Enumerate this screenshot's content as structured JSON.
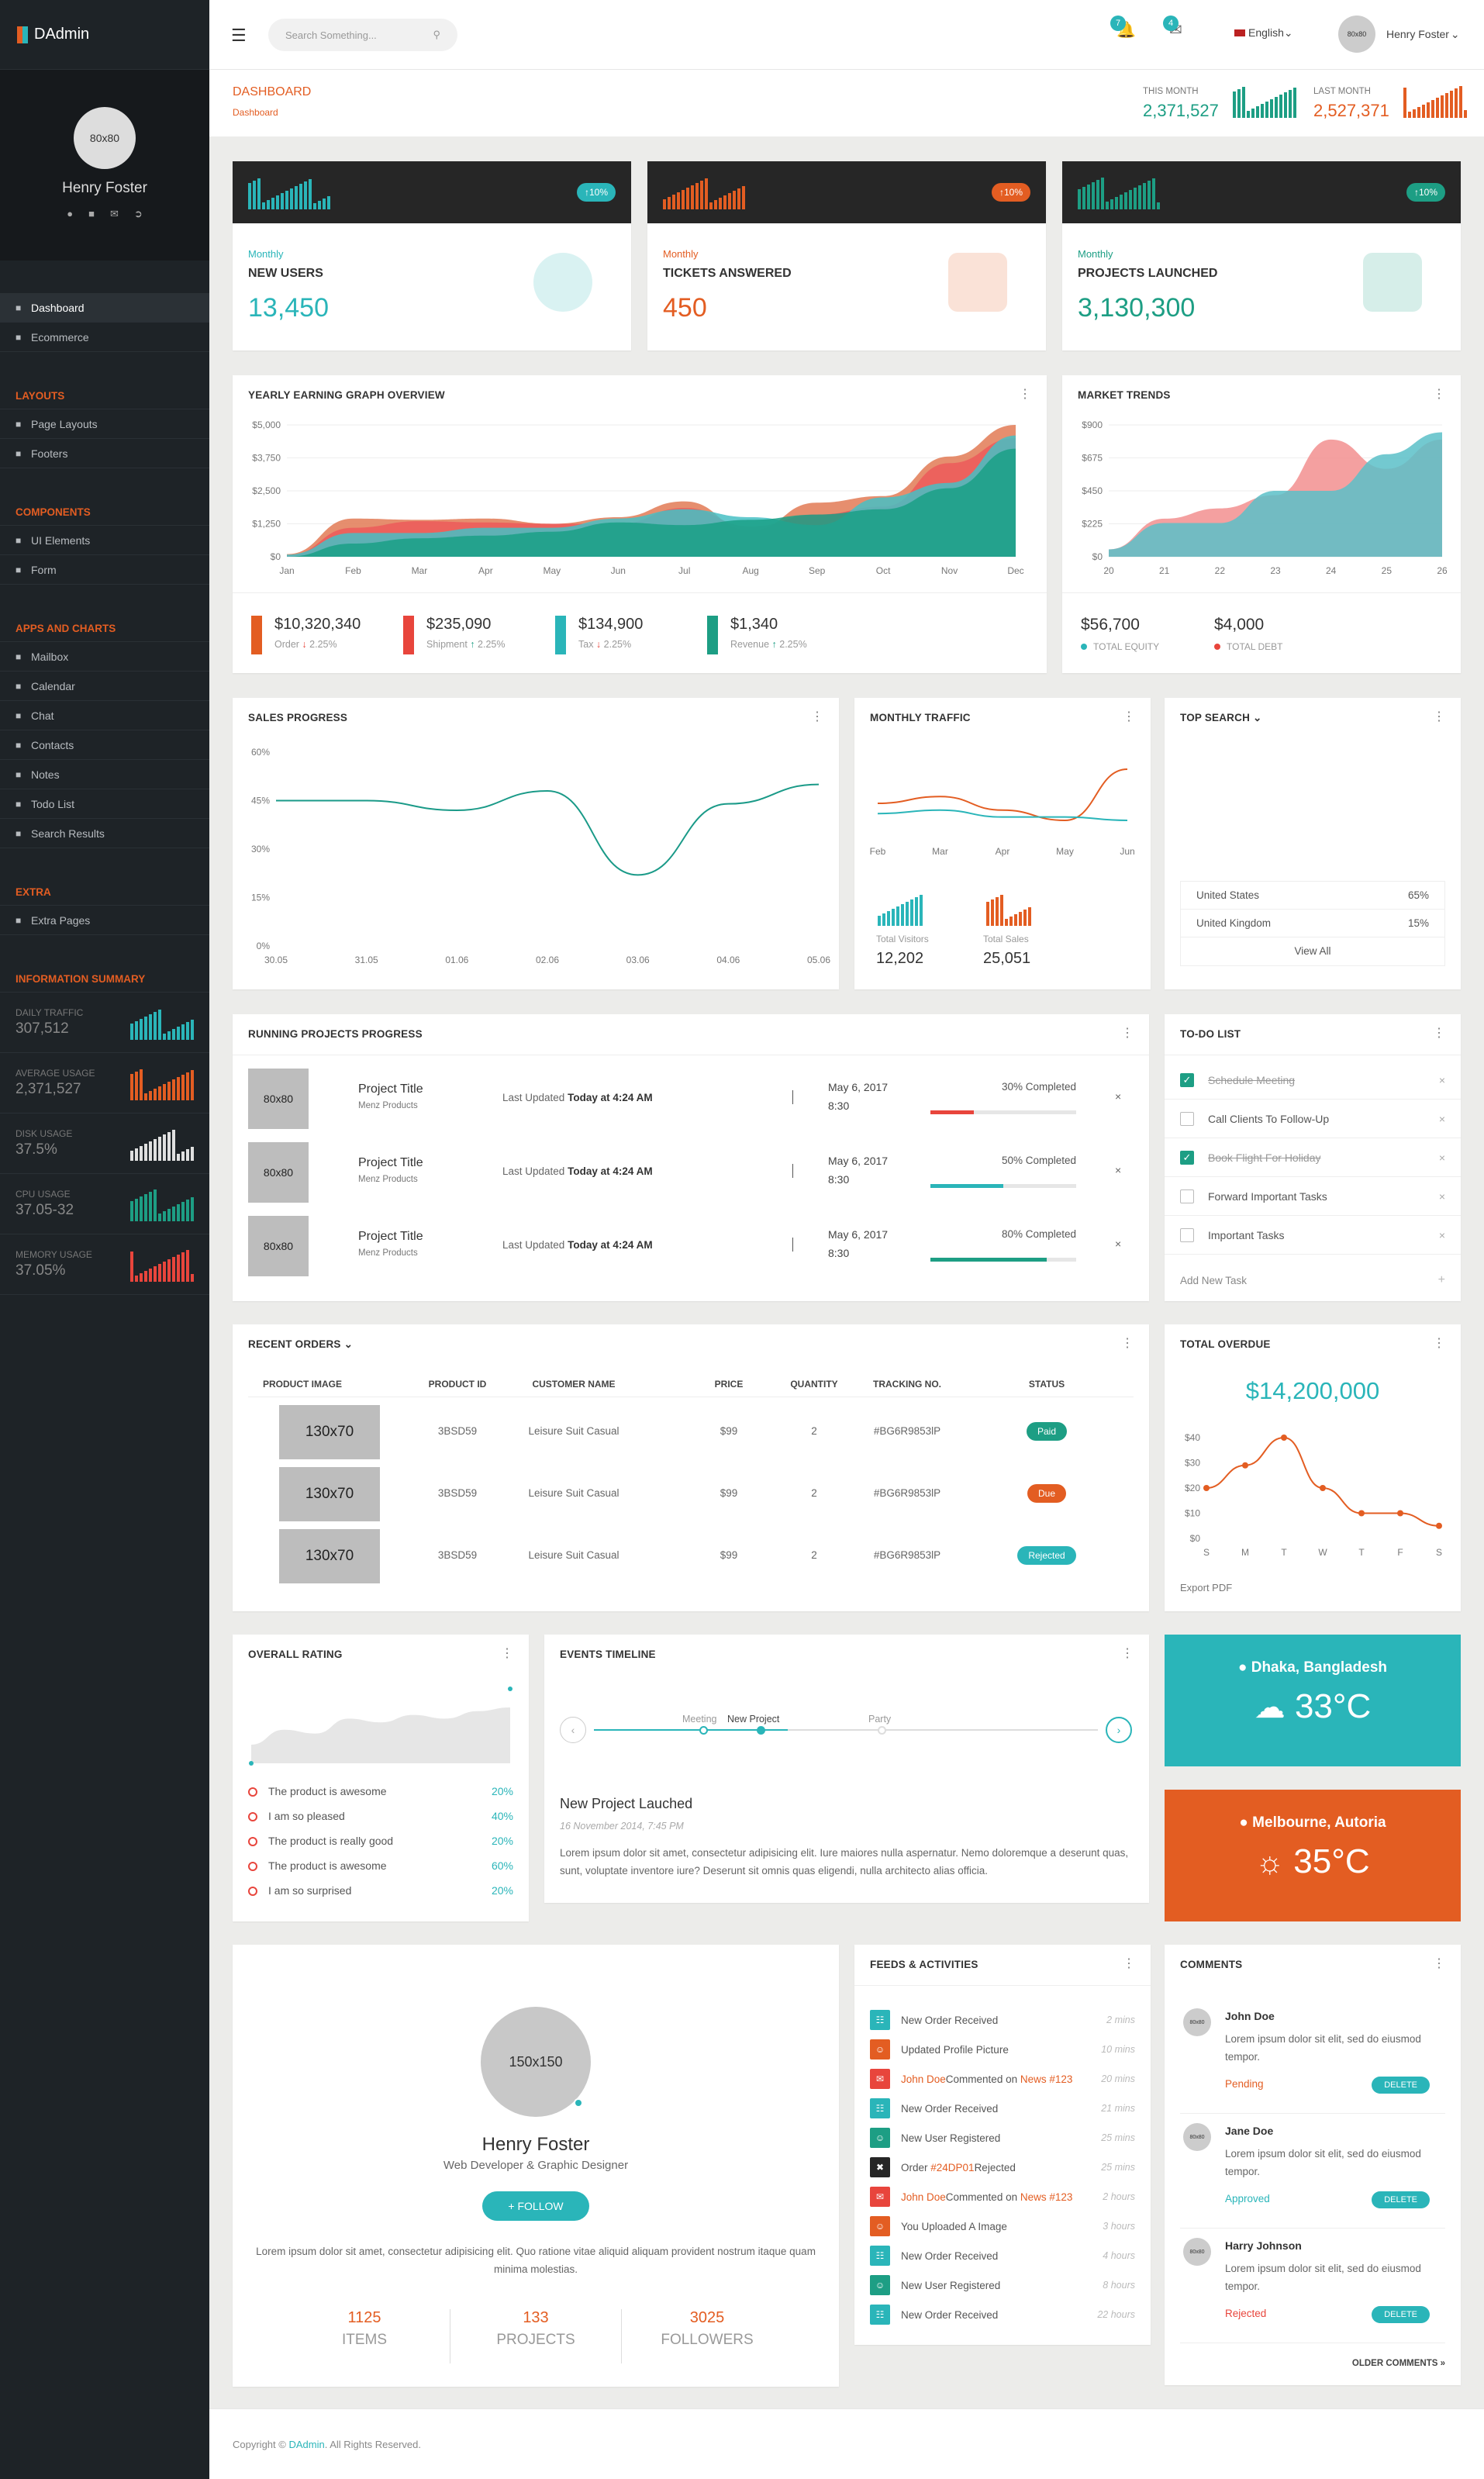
{
  "app": {
    "name": "DAdmin"
  },
  "sidebar": {
    "avatar": "80x80",
    "user_name": "Henry Foster",
    "items_main": [
      {
        "label": "Dashboard",
        "icon": "home-icon"
      },
      {
        "label": "Ecommerce",
        "icon": "cart-icon"
      }
    ],
    "layouts_head": "LAYOUTS",
    "items_layouts": [
      {
        "label": "Page Layouts"
      },
      {
        "label": "Footers"
      }
    ],
    "components_head": "COMPONENTS",
    "items_components": [
      {
        "label": "UI Elements"
      },
      {
        "label": "Form"
      }
    ],
    "apps_head": "APPS AND CHARTS",
    "items_apps": [
      {
        "label": "Mailbox"
      },
      {
        "label": "Calendar"
      },
      {
        "label": "Chat"
      },
      {
        "label": "Contacts"
      },
      {
        "label": "Notes"
      },
      {
        "label": "Todo List"
      },
      {
        "label": "Search Results"
      }
    ],
    "extra_head": "EXTRA",
    "items_extra": [
      {
        "label": "Extra Pages"
      }
    ],
    "info_head": "INFORMATION SUMMARY",
    "info": [
      {
        "label": "DAILY TRAFFIC",
        "value": "307,512",
        "color": "#2ab5b9"
      },
      {
        "label": "AVERAGE USAGE",
        "value": "2,371,527",
        "color": "#e35d22"
      },
      {
        "label": "DISK USAGE",
        "value": "37.5%",
        "color": "#e0e0e0"
      },
      {
        "label": "CPU USAGE",
        "value": "37.05-32",
        "color": "#1d9e84"
      },
      {
        "label": "MEMORY USAGE",
        "value": "37.05%",
        "color": "#e8453c"
      }
    ]
  },
  "topbar": {
    "search_placeholder": "Search Something...",
    "notif_count": "7",
    "mail_count": "4",
    "language": "English",
    "user": "Henry Foster",
    "avatar": "80x80"
  },
  "header": {
    "title": "DASHBOARD",
    "breadcrumb": "Dashboard",
    "this_month_label": "THIS MONTH",
    "this_month": "2,371,527",
    "last_month_label": "LAST MONTH",
    "last_month": "2,527,371"
  },
  "stats": [
    {
      "sub": "Monthly",
      "title": "NEW USERS",
      "value": "13,450",
      "pill": "10%",
      "color": "#2ab5b9"
    },
    {
      "sub": "Monthly",
      "title": "TICKETS ANSWERED",
      "value": "450",
      "pill": "10%",
      "color": "#e35d22"
    },
    {
      "sub": "Monthly",
      "title": "PROJECTS LAUNCHED",
      "value": "3,130,300",
      "pill": "10%",
      "color": "#1d9e84"
    }
  ],
  "yearly": {
    "title": "YEARLY EARNING GRAPH OVERVIEW",
    "summary": [
      {
        "value": "$10,320,340",
        "label": "Order",
        "change": "2.25%",
        "dir": "down",
        "color": "#e35d22"
      },
      {
        "value": "$235,090",
        "label": "Shipment",
        "change": "2.25%",
        "dir": "up",
        "color": "#e8453c"
      },
      {
        "value": "$134,900",
        "label": "Tax",
        "change": "2.25%",
        "dir": "down",
        "color": "#2ab5b9"
      },
      {
        "value": "$1,340",
        "label": "Revenue",
        "change": "2.25%",
        "dir": "up",
        "color": "#1d9e84"
      }
    ]
  },
  "market": {
    "title": "MARKET TRENDS",
    "equity": "$56,700",
    "equity_label": "TOTAL EQUITY",
    "debt": "$4,000",
    "debt_label": "TOTAL DEBT"
  },
  "sales": {
    "title": "SALES PROGRESS"
  },
  "traffic": {
    "title": "MONTHLY TRAFFIC",
    "visitors": "12,202",
    "visitors_label": "Total Visitors",
    "sales": "25,051",
    "sales_label": "Total Sales"
  },
  "top_search": {
    "title": "TOP SEARCH",
    "rows": [
      {
        "country": "United States",
        "pct": "65%"
      },
      {
        "country": "United Kingdom",
        "pct": "15%"
      }
    ],
    "view_all": "View All"
  },
  "projects": {
    "title": "RUNNING PROJECTS PROGRESS",
    "items": [
      {
        "thumb": "80x80",
        "name": "Project Title",
        "client": "Menz Products",
        "updated": "Last Updated",
        "when": "Today at 4:24 AM",
        "date": "May 6, 2017",
        "time": "8:30",
        "pct_label": "30% Completed",
        "pct": 30,
        "color": "#e8453c"
      },
      {
        "thumb": "80x80",
        "name": "Project Title",
        "client": "Menz Products",
        "updated": "Last Updated",
        "when": "Today at 4:24 AM",
        "date": "May 6, 2017",
        "time": "8:30",
        "pct_label": "50% Completed",
        "pct": 50,
        "color": "#2ab5b9"
      },
      {
        "thumb": "80x80",
        "name": "Project Title",
        "client": "Menz Products",
        "updated": "Last Updated",
        "when": "Today at 4:24 AM",
        "date": "May 6, 2017",
        "time": "8:30",
        "pct_label": "80% Completed",
        "pct": 80,
        "color": "#1d9e84"
      }
    ]
  },
  "todo": {
    "title": "TO-DO LIST",
    "items": [
      {
        "text": "Schedule Meeting",
        "done": true
      },
      {
        "text": "Call Clients To Follow-Up",
        "done": false
      },
      {
        "text": "Book Flight For Holiday",
        "done": true
      },
      {
        "text": "Forward Important Tasks",
        "done": false
      },
      {
        "text": "Important Tasks",
        "done": false
      }
    ],
    "add": "Add New Task"
  },
  "orders": {
    "title": "RECENT ORDERS",
    "headers": [
      "PRODUCT IMAGE",
      "PRODUCT ID",
      "CUSTOMER NAME",
      "PRICE",
      "QUANTITY",
      "TRACKING NO.",
      "STATUS"
    ],
    "rows": [
      {
        "img": "130x70",
        "id": "3BSD59",
        "name": "Leisure Suit Casual",
        "price": "$99",
        "qty": "2",
        "tracking": "#BG6R9853lP",
        "status": "Paid",
        "color": "#1d9e84"
      },
      {
        "img": "130x70",
        "id": "3BSD59",
        "name": "Leisure Suit Casual",
        "price": "$99",
        "qty": "2",
        "tracking": "#BG6R9853lP",
        "status": "Due",
        "color": "#e35d22"
      },
      {
        "img": "130x70",
        "id": "3BSD59",
        "name": "Leisure Suit Casual",
        "price": "$99",
        "qty": "2",
        "tracking": "#BG6R9853lP",
        "status": "Rejected",
        "color": "#2ab5b9"
      }
    ]
  },
  "overdue": {
    "title": "TOTAL OVERDUE",
    "amount": "$14,200,000",
    "export": "Export PDF"
  },
  "rating": {
    "title": "OVERALL RATING",
    "items": [
      {
        "text": "The product is awesome",
        "pct": "20%"
      },
      {
        "text": "I am so pleased",
        "pct": "40%"
      },
      {
        "text": "The product is really good",
        "pct": "20%"
      },
      {
        "text": "The product is awesome",
        "pct": "60%"
      },
      {
        "text": "I am so surprised",
        "pct": "20%"
      }
    ]
  },
  "timeline": {
    "title": "EVENTS TIMELINE",
    "points": [
      "Meeting",
      "New Project",
      "Party"
    ],
    "event_title": "New Project Lauched",
    "event_date": "16 November 2014, 7:45 PM",
    "event_text": "Lorem ipsum dolor sit amet, consectetur adipisicing elit. Iure maiores nulla aspernatur. Nemo doloremque a deserunt quas, sunt, voluptate inventore iure? Deserunt sit omnis quas eligendi, nulla architecto alias officia."
  },
  "weather": [
    {
      "city": "Dhaka, Bangladesh",
      "temp": "33°C",
      "color": "#2ab5b9"
    },
    {
      "city": "Melbourne, Autoria",
      "temp": "35°C",
      "color": "#e35d22"
    }
  ],
  "profile_card": {
    "avatar": "150x150",
    "name": "Henry Foster",
    "role": "Web Developer & Graphic Designer",
    "follow": "+ FOLLOW",
    "bio": "Lorem ipsum dolor sit amet, consectetur adipisicing elit. Quo ratione vitae aliquid aliquam provident nostrum itaque quam minima molestias.",
    "stats": [
      {
        "value": "1125",
        "label": "ITEMS"
      },
      {
        "value": "133",
        "label": "PROJECTS"
      },
      {
        "value": "3025",
        "label": "FOLLOWERS"
      }
    ]
  },
  "feeds": {
    "title": "FEEDS & ACTIVITIES",
    "items": [
      {
        "text": "New Order Received",
        "time": "2 mins",
        "color": "#2ab5b9",
        "icon": "cart-icon"
      },
      {
        "text": "Updated Profile Picture",
        "time": "10 mins",
        "color": "#e35d22",
        "icon": "user-icon"
      },
      {
        "pre": "John Doe",
        "text": "Commented on ",
        "link": "News #123",
        "time": "20 mins",
        "color": "#e8453c",
        "icon": "comment-icon"
      },
      {
        "text": "New Order Received",
        "time": "21 mins",
        "color": "#2ab5b9",
        "icon": "cart-icon"
      },
      {
        "text": "New User Registered",
        "time": "25 mins",
        "color": "#1d9e84",
        "icon": "user-icon"
      },
      {
        "text": "Order ",
        "link": "#24DP01",
        "post": "Rejected",
        "time": "25 mins",
        "color": "#262626",
        "icon": "close-icon"
      },
      {
        "pre": "John Doe",
        "text": "Commented on ",
        "link": "News #123",
        "time": "2 hours",
        "color": "#e8453c",
        "icon": "comment-icon"
      },
      {
        "text": "You Uploaded A Image",
        "time": "3 hours",
        "color": "#e35d22",
        "icon": "user-icon"
      },
      {
        "text": "New Order Received",
        "time": "4 hours",
        "color": "#2ab5b9",
        "icon": "cart-icon"
      },
      {
        "text": "New User Registered",
        "time": "8 hours",
        "color": "#1d9e84",
        "icon": "user-icon"
      },
      {
        "text": "New Order Received",
        "time": "22 hours",
        "color": "#2ab5b9",
        "icon": "cart-icon"
      }
    ]
  },
  "comments": {
    "title": "COMMENTS",
    "items": [
      {
        "avatar": "80x80",
        "name": "John Doe",
        "text": "Lorem ipsum dolor sit elit, sed do eiusmod tempor.",
        "status": "Pending",
        "status_color": "#e35d22",
        "btn": "DELETE"
      },
      {
        "avatar": "80x80",
        "name": "Jane Doe",
        "text": "Lorem ipsum dolor sit elit, sed do eiusmod tempor.",
        "status": "Approved",
        "status_color": "#2ab5b9",
        "btn": "DELETE"
      },
      {
        "avatar": "80x80",
        "name": "Harry Johnson",
        "text": "Lorem ipsum dolor sit elit, sed do eiusmod tempor.",
        "status": "Rejected",
        "status_color": "#e8453c",
        "btn": "DELETE"
      }
    ],
    "older": "OLDER COMMENTS"
  },
  "footer": {
    "pre": "Copyright © ",
    "brand": "DAdmin",
    "post": ". All Rights Reserved."
  },
  "chart_data": [
    {
      "type": "area",
      "title": "YEARLY EARNING GRAPH OVERVIEW",
      "categories": [
        "Jan",
        "Feb",
        "Mar",
        "Apr",
        "May",
        "Jun",
        "Jul",
        "Aug",
        "Sep",
        "Oct",
        "Nov",
        "Dec"
      ],
      "ylim": [
        0,
        5000
      ],
      "yticks": [
        "$0",
        "$1,250",
        "$2,500",
        "$3,750",
        "$5,000"
      ],
      "series": [
        {
          "name": "Order",
          "color": "#e27a55",
          "values": [
            100,
            1450,
            1400,
            1450,
            1250,
            1500,
            2100,
            1000,
            2050,
            2300,
            3800,
            5000
          ]
        },
        {
          "name": "Shipment",
          "color": "#ec5b5b",
          "values": [
            50,
            1100,
            1350,
            1300,
            1250,
            1250,
            1850,
            1150,
            1600,
            1900,
            3550,
            4500
          ]
        },
        {
          "name": "Tax",
          "color": "#46bfc4",
          "values": [
            80,
            900,
            900,
            1100,
            1100,
            1450,
            1800,
            1500,
            1200,
            2250,
            2800,
            4600
          ]
        },
        {
          "name": "Revenue",
          "color": "#1aa086",
          "values": [
            0,
            500,
            700,
            800,
            950,
            1300,
            1200,
            1400,
            1600,
            1800,
            2600,
            4100
          ]
        }
      ]
    },
    {
      "type": "area",
      "title": "MARKET TRENDS",
      "categories": [
        "20",
        "21",
        "22",
        "23",
        "24",
        "25",
        "26"
      ],
      "ylim": [
        0,
        900
      ],
      "yticks": [
        "$0",
        "$225",
        "$450",
        "$675",
        "$900"
      ],
      "series": [
        {
          "name": "A",
          "color": "#f28f8f",
          "values": [
            50,
            260,
            330,
            420,
            800,
            600,
            800
          ]
        },
        {
          "name": "B",
          "color": "#5bbfc8",
          "values": [
            50,
            230,
            230,
            450,
            450,
            700,
            850
          ]
        }
      ]
    },
    {
      "type": "line",
      "title": "SALES PROGRESS",
      "categories": [
        "30.05",
        "31.05",
        "01.06",
        "02.06",
        "03.06",
        "04.06",
        "05.06"
      ],
      "ylim": [
        0,
        60
      ],
      "yticks": [
        "0%",
        "15%",
        "30%",
        "45%",
        "60%"
      ],
      "series": [
        {
          "name": "Sales",
          "color": "#1a9a88",
          "values": [
            45,
            45,
            42,
            48,
            22,
            44,
            50
          ]
        }
      ]
    },
    {
      "type": "line",
      "title": "MONTHLY TRAFFIC",
      "categories": [
        "Feb",
        "Mar",
        "Apr",
        "May",
        "Jun"
      ],
      "series": [
        {
          "name": "Visitors",
          "color": "#e35d22",
          "values": [
            50,
            52,
            48,
            45,
            60
          ]
        },
        {
          "name": "Sales",
          "color": "#2ab5b9",
          "values": [
            47,
            48,
            46,
            46,
            45
          ]
        }
      ]
    },
    {
      "type": "line",
      "title": "TOTAL OVERDUE",
      "categories": [
        "S",
        "M",
        "T",
        "W",
        "T",
        "F",
        "S"
      ],
      "ylim": [
        0,
        40
      ],
      "yticks": [
        "$0",
        "$10",
        "$20",
        "$30",
        "$40"
      ],
      "series": [
        {
          "name": "Overdue",
          "color": "#e35d22",
          "values": [
            20,
            29,
            40,
            20,
            10,
            10,
            5
          ]
        }
      ]
    },
    {
      "type": "area",
      "title": "OVERALL RATING",
      "series": [
        {
          "name": "Rating",
          "color": "#e6e6e6",
          "values": [
            2,
            6,
            5,
            9,
            8,
            10,
            9,
            11,
            12
          ]
        }
      ]
    }
  ]
}
